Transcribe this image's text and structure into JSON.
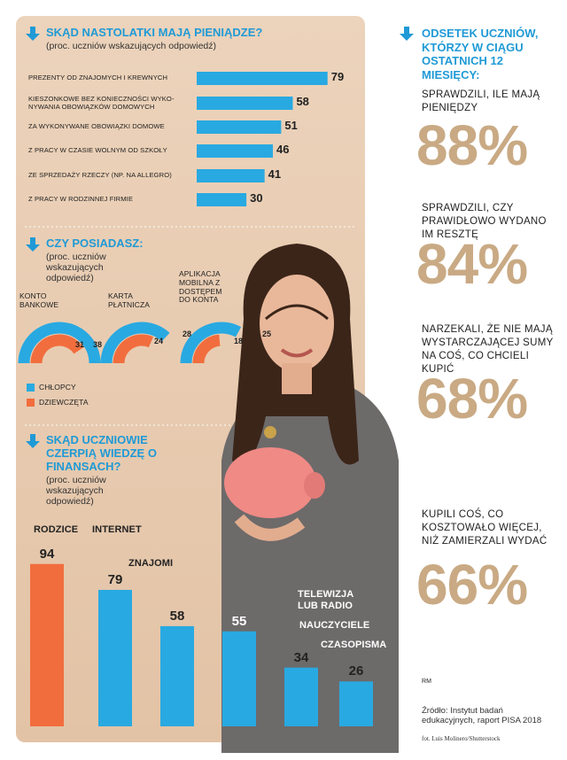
{
  "money_sources": {
    "title": "SKĄD NASTOLATKI MAJĄ PIENIĄDZE?",
    "subtitle": "(proc. uczniów wskazujących odpowiedź)",
    "categories": [
      "PREZENTY OD ZNAJOMYCH I KREWNYCH",
      "KIESZONKOWE BEZ KONIECZNOŚCI WYKO-NYWANIA OBOWIĄZKÓW DOMOWYCH",
      "ZA WYKONYWANE OBOWIĄZKI DOMOWE",
      "Z PRACY W CZASIE WOLNYM OD SZKOŁY",
      "ZE SPRZEDAŻY RZECZY (NP. NA ALLEGRO)",
      "Z PRACY W RODZINNEJ FIRMIE"
    ],
    "values": [
      79,
      58,
      51,
      46,
      41,
      30
    ],
    "color": "#29a9e1"
  },
  "ownership": {
    "title": "CZY POSIADASZ:",
    "subtitle": "(proc. uczniów wskazujących odpowiedź)",
    "categories": [
      "KONTO BANKOWE",
      "KARTA PŁATNICZA",
      "APLIKACJA MOBILNA Z DOSTĘPEM DO KONTA"
    ],
    "series": [
      {
        "name": "CHŁOPCY",
        "color": "#29a9e1",
        "values": [
          38,
          28,
          25
        ]
      },
      {
        "name": "DZIEWCZĘTA",
        "color": "#f26d3d",
        "values": [
          31,
          24,
          18
        ]
      }
    ]
  },
  "knowledge": {
    "title": "SKĄD UCZNIOWIE CZERPIĄ WIEDZĘ O FINANSACH?",
    "subtitle": "(proc. uczniów wskazujących odpowiedź)",
    "categories": [
      "RODZICE",
      "INTERNET",
      "ZNAJOMI",
      "TELEWIZJA LUB RADIO",
      "NAUCZYCIELE",
      "CZASOPISMA"
    ],
    "values": [
      94,
      79,
      58,
      55,
      34,
      26
    ],
    "colors": [
      "#f26d3d",
      "#29a9e1",
      "#29a9e1",
      "#29a9e1",
      "#29a9e1",
      "#29a9e1"
    ]
  },
  "stats": {
    "title": "ODSETEK UCZNIÓW, KTÓRZY W CIĄGU OSTATNICH 12 MIESIĘCY:",
    "items": [
      {
        "label": "SPRAWDZILI, ILE MAJĄ PIENIĘDZY",
        "value": 88,
        "value_label": "88%"
      },
      {
        "label": "SPRAWDZILI, CZY PRAWIDŁOWO WYDANO IM RESZTĘ",
        "value": 84,
        "value_label": "84%"
      },
      {
        "label": "NARZEKALI, ŻE NIE MAJĄ WYSTARCZAJĄCEJ SUMY NA COŚ, CO CHCIELI KUPIĆ",
        "value": 68,
        "value_label": "68%"
      },
      {
        "label": "KUPILI COŚ, CO KOSZTOWAŁO WIĘCEJ, NIŻ ZAMIERZALI WYDAĆ",
        "value": 66,
        "value_label": "66%"
      }
    ]
  },
  "footer": {
    "mark": "RM",
    "source": "Źródło: Instytut badań edukacyjnych, raport PISA 2018",
    "photo": "fot. Luis Molinero/Shutterstock"
  }
}
